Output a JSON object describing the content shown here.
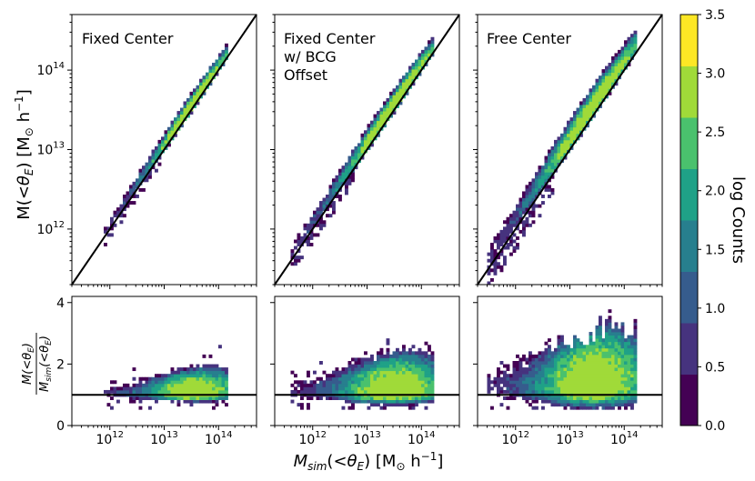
{
  "figure": {
    "ylabel_top": "M(<θ_E) [M⊙ h⁻¹]",
    "ylabel_bottom_num": "M(<θ_E)",
    "ylabel_bottom_den": "M_sim(<θ_E)",
    "xlabel": "M_sim(<θ_E) [M⊙ h⁻¹]"
  },
  "colorbar": {
    "label": "log Counts",
    "min": 0.0,
    "max": 3.5,
    "ticks": [
      "0.0",
      "0.5",
      "1.0",
      "1.5",
      "2.0",
      "2.5",
      "3.0",
      "3.5"
    ],
    "colors": [
      "#440154",
      "#46337e",
      "#365c8d",
      "#277f8e",
      "#1fa187",
      "#4ac16d",
      "#a0da39",
      "#fde725"
    ]
  },
  "chart_data": [
    {
      "type": "heatmap",
      "panel": "top-left",
      "title": "Fixed Center",
      "xscale": "log",
      "yscale": "log",
      "xlim": [
        200000000000.0,
        500000000000000.0
      ],
      "ylim": [
        200000000000.0,
        500000000000000.0
      ],
      "ytick_labels": [
        "10^12",
        "10^13",
        "10^14"
      ],
      "reference_line": "y = x",
      "cloud": {
        "xmin": 800000000000.0,
        "xmax": 150000000000000.0,
        "scatter_dex": 0.05,
        "bias_dex": 0.05,
        "tail": 0.06
      }
    },
    {
      "type": "heatmap",
      "panel": "top-middle",
      "title_lines": [
        "Fixed Center",
        "w/ BCG",
        "Offset"
      ],
      "xscale": "log",
      "yscale": "log",
      "xlim": [
        200000000000.0,
        500000000000000.0
      ],
      "ylim": [
        200000000000.0,
        500000000000000.0
      ],
      "reference_line": "y = x",
      "cloud": {
        "xmin": 400000000000.0,
        "xmax": 160000000000000.0,
        "scatter_dex": 0.07,
        "bias_dex": 0.07,
        "tail": 0.08
      }
    },
    {
      "type": "heatmap",
      "panel": "top-right",
      "title": "Free Center",
      "xscale": "log",
      "yscale": "log",
      "xlim": [
        200000000000.0,
        500000000000000.0
      ],
      "ylim": [
        200000000000.0,
        500000000000000.0
      ],
      "reference_line": "y = x",
      "cloud": {
        "xmin": 300000000000.0,
        "xmax": 160000000000000.0,
        "scatter_dex": 0.1,
        "bias_dex": 0.12,
        "tail": 0.13
      }
    },
    {
      "type": "heatmap",
      "panel": "bottom-left",
      "xscale": "log",
      "yscale": "linear",
      "xlim": [
        200000000000.0,
        500000000000000.0
      ],
      "ylim": [
        0,
        4.2
      ],
      "xtick_labels": [
        "10^12",
        "10^13",
        "10^14"
      ],
      "ytick_labels": [
        "0",
        "2",
        "4"
      ],
      "reference_line": "y = 1",
      "cloud": {
        "xmin": 800000000000.0,
        "xmax": 150000000000000.0,
        "ratio_center": 1.05,
        "ratio_spread": 0.18,
        "ratio_max": 2.7
      }
    },
    {
      "type": "heatmap",
      "panel": "bottom-middle",
      "xscale": "log",
      "yscale": "linear",
      "xlim": [
        200000000000.0,
        500000000000000.0
      ],
      "ylim": [
        0,
        4.2
      ],
      "xtick_labels": [
        "10^12",
        "10^13",
        "10^14"
      ],
      "reference_line": "y = 1",
      "cloud": {
        "xmin": 400000000000.0,
        "xmax": 160000000000000.0,
        "ratio_center": 1.1,
        "ratio_spread": 0.28,
        "ratio_max": 3.5
      }
    },
    {
      "type": "heatmap",
      "panel": "bottom-right",
      "xscale": "log",
      "yscale": "linear",
      "xlim": [
        200000000000.0,
        500000000000000.0
      ],
      "ylim": [
        0,
        4.2
      ],
      "xtick_labels": [
        "10^12",
        "10^13",
        "10^14"
      ],
      "reference_line": "y = 1",
      "cloud": {
        "xmin": 300000000000.0,
        "xmax": 160000000000000.0,
        "ratio_center": 1.25,
        "ratio_spread": 0.45,
        "ratio_max": 4.2
      }
    }
  ]
}
